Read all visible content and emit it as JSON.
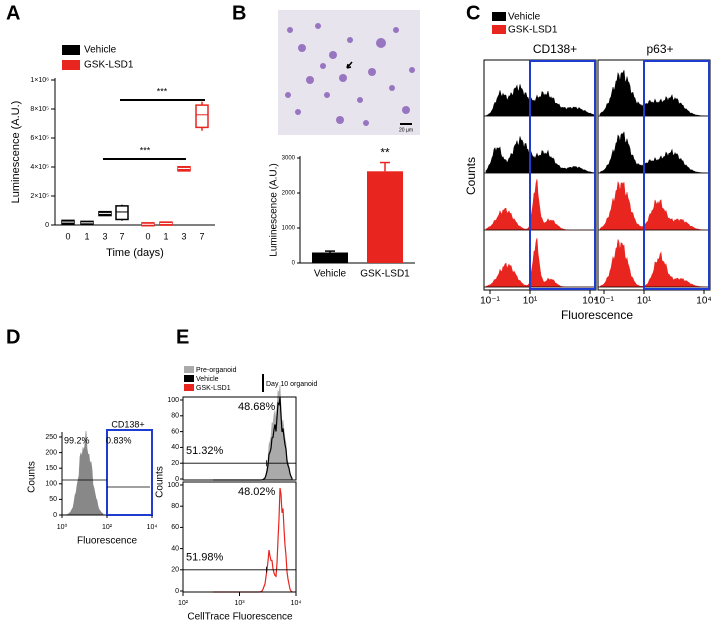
{
  "chart_data": [
    {
      "type": "box",
      "panel": "A",
      "ylabel": "Luminescence (A.U.)",
      "xlabel": "Time (days)",
      "ylim": [
        0,
        1000000
      ],
      "yticks": [
        0,
        {
          "value": 200000,
          "label": "2×10⁵"
        },
        {
          "value": 400000,
          "label": "4×10⁵"
        },
        {
          "value": 600000,
          "label": "6×10⁵"
        },
        {
          "value": 800000,
          "label": "8×10⁵"
        },
        {
          "value": 1000000,
          "label": "1×10⁶"
        }
      ],
      "series": [
        {
          "name": "Vehicle",
          "color": "#000000",
          "categories": [
            "0",
            "1",
            "3",
            "7"
          ],
          "values": [
            [
              12000,
              15000,
              20000,
              25000,
              30000
            ],
            [
              8000,
              12000,
              15000,
              18000,
              22000
            ],
            [
              65000,
              72000,
              80000,
              85000,
              90000
            ],
            [
              30000,
              45000,
              90000,
              125000,
              140000
            ]
          ]
        },
        {
          "name": "GSK-LSD1",
          "color": "#e8251f",
          "categories": [
            "0",
            "1",
            "3",
            "7"
          ],
          "values": [
            [
              0,
              2000,
              5000,
              8000,
              10000
            ],
            [
              3000,
              6000,
              10000,
              13000,
              15000
            ],
            [
              375000,
              380000,
              390000,
              395000,
              400000
            ],
            [
              650000,
              680000,
              760000,
              820000,
              850000
            ]
          ]
        }
      ],
      "annotations": [
        "***",
        "***"
      ]
    },
    {
      "type": "bar",
      "panel": "B",
      "scale_label": "20 µm",
      "ylabel": "Luminescence (A.U.)",
      "categories": [
        "Vehicle",
        "GSK-LSD1"
      ],
      "values": [
        300,
        2620
      ],
      "errors": [
        40,
        250
      ],
      "colors": [
        "#000000",
        "#e8251f"
      ],
      "ylim": [
        0,
        3000
      ],
      "yticks": [
        0,
        1000,
        2000,
        3000
      ],
      "annotations": [
        "**"
      ]
    },
    {
      "type": "histogram-grid",
      "panel": "C",
      "legend": [
        {
          "name": "Vehicle",
          "color": "#000000"
        },
        {
          "name": "GSK-LSD1",
          "color": "#e8251f"
        }
      ],
      "columns": [
        "CD138+",
        "p63+"
      ],
      "ylabel": "Counts",
      "xlabel": "Fluorescence",
      "log_x": true,
      "xlim": [
        0.1,
        10000
      ],
      "xticks": [
        {
          "value": 0.1,
          "label": "10⁻¹"
        },
        {
          "value": 10,
          "label": "10¹"
        },
        {
          "value": 10000,
          "label": "10⁴"
        }
      ],
      "gate_color": "#1f3cd1"
    },
    {
      "type": "histogram",
      "panel": "D",
      "gate_label": "CD138+",
      "ylabel": "Counts",
      "xlabel": "Fluorescence",
      "log_x": true,
      "xlim": [
        1,
        10000
      ],
      "xticks": [
        {
          "value": 1,
          "label": "10⁰"
        },
        {
          "value": 100,
          "label": "10²"
        },
        {
          "value": 10000,
          "label": "10⁴"
        }
      ],
      "ylim": [
        0,
        250
      ],
      "yticks": [
        0,
        50,
        100,
        150,
        200,
        250
      ],
      "percents": [
        99.2,
        0.83
      ],
      "percent_labels": [
        "99.2%",
        "0.83%"
      ],
      "color": "#888888",
      "gate_color": "#1f3cd1"
    },
    {
      "type": "overlay-histogram",
      "panel": "E",
      "legend": [
        {
          "name": "Pre-organoid",
          "color": "#aaaaaa"
        },
        {
          "name": "Vehicle",
          "color": "#000000"
        },
        {
          "name": "GSK-LSD1",
          "color": "#e8251f"
        }
      ],
      "legend_group": "Day 10 organoid",
      "xlabel": "CellTrace Fluorescence",
      "ylabel": "Counts",
      "log_x": true,
      "xlim": [
        100,
        10000
      ],
      "xticks": [
        {
          "value": 100,
          "label": "10²"
        },
        {
          "value": 1000,
          "label": "10³"
        },
        {
          "value": 10000,
          "label": "10⁴"
        }
      ],
      "ylim": [
        0,
        100
      ],
      "yticks": [
        0,
        20,
        40,
        60,
        80,
        100
      ],
      "panels": [
        {
          "percents": [
            48.68,
            51.32
          ],
          "percent_labels": [
            "48.68%",
            "51.32%"
          ]
        },
        {
          "percents": [
            48.02,
            51.98
          ],
          "percent_labels": [
            "48.02%",
            "51.98%"
          ]
        }
      ]
    }
  ]
}
